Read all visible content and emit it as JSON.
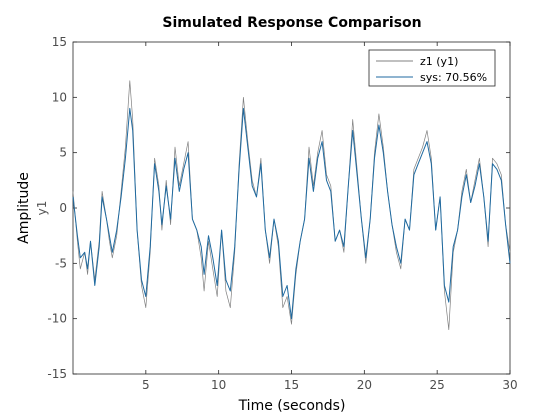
{
  "chart_data": {
    "type": "line",
    "title": "Simulated Response Comparison",
    "xlabel": "Time (seconds)",
    "ylabel": "Amplitude",
    "channel_label": "y1",
    "xlim": [
      0,
      30
    ],
    "ylim": [
      -15,
      15
    ],
    "xticks": [
      5,
      10,
      15,
      20,
      25,
      30
    ],
    "yticks": [
      -15,
      -10,
      -5,
      0,
      5,
      10,
      15
    ],
    "grid": false,
    "legend_position": "top-right",
    "series": [
      {
        "name": "z1 (y1)",
        "color": "#808080",
        "x": [
          0,
          0.3,
          0.5,
          0.8,
          1.0,
          1.2,
          1.5,
          1.8,
          2.0,
          2.3,
          2.5,
          2.7,
          3.0,
          3.3,
          3.6,
          3.9,
          4.1,
          4.4,
          4.7,
          5.0,
          5.3,
          5.6,
          5.9,
          6.1,
          6.4,
          6.7,
          7.0,
          7.3,
          7.6,
          7.9,
          8.2,
          8.5,
          8.8,
          9.0,
          9.3,
          9.6,
          9.9,
          10.2,
          10.5,
          10.8,
          11.1,
          11.4,
          11.7,
          12.0,
          12.3,
          12.6,
          12.9,
          13.2,
          13.5,
          13.8,
          14.1,
          14.4,
          14.7,
          15.0,
          15.3,
          15.6,
          15.9,
          16.2,
          16.5,
          16.8,
          17.1,
          17.4,
          17.7,
          18.0,
          18.3,
          18.6,
          18.9,
          19.2,
          19.5,
          19.8,
          20.1,
          20.4,
          20.7,
          21.0,
          21.3,
          21.6,
          21.9,
          22.2,
          22.5,
          22.8,
          23.1,
          23.4,
          23.7,
          24.0,
          24.3,
          24.6,
          24.9,
          25.2,
          25.5,
          25.8,
          26.1,
          26.4,
          26.7,
          27.0,
          27.3,
          27.6,
          27.9,
          28.2,
          28.5,
          28.8,
          29.1,
          29.4,
          29.7,
          30.0
        ],
        "y": [
          1.5,
          -3.0,
          -5.5,
          -4.0,
          -6.0,
          -3.0,
          -6.5,
          -3.0,
          1.5,
          -1.0,
          -3.0,
          -4.5,
          -2.5,
          1.5,
          5.5,
          11.5,
          8.0,
          -2.0,
          -7.0,
          -9.0,
          -4.0,
          4.5,
          2.0,
          -2.0,
          2.5,
          -1.5,
          5.5,
          2.0,
          4.0,
          6.0,
          -1.0,
          -2.0,
          -4.5,
          -7.5,
          -3.0,
          -5.5,
          -8.0,
          -2.0,
          -7.5,
          -9.0,
          -4.0,
          4.0,
          10.0,
          6.0,
          2.5,
          1.0,
          4.5,
          -2.0,
          -5.0,
          -1.0,
          -3.5,
          -9.0,
          -8.0,
          -10.5,
          -6.0,
          -3.0,
          -1.0,
          5.5,
          2.0,
          5.0,
          7.0,
          3.0,
          2.0,
          -3.0,
          -2.0,
          -4.0,
          2.0,
          8.0,
          3.5,
          -1.0,
          -5.0,
          -1.0,
          5.0,
          8.5,
          5.5,
          1.5,
          -1.5,
          -4.0,
          -5.5,
          -1.0,
          -2.0,
          3.5,
          4.5,
          5.5,
          7.0,
          4.5,
          -2.0,
          1.0,
          -7.5,
          -11.0,
          -4.0,
          -2.0,
          1.5,
          3.5,
          0.5,
          2.5,
          4.5,
          1.0,
          -3.5,
          4.5,
          4.0,
          3.0,
          -1.5,
          -4.0
        ]
      },
      {
        "name": "sys: 70.56%",
        "color": "#1f6aa0",
        "x": [
          0,
          0.3,
          0.5,
          0.8,
          1.0,
          1.2,
          1.5,
          1.8,
          2.0,
          2.3,
          2.5,
          2.7,
          3.0,
          3.3,
          3.6,
          3.9,
          4.1,
          4.4,
          4.7,
          5.0,
          5.3,
          5.6,
          5.9,
          6.1,
          6.4,
          6.7,
          7.0,
          7.3,
          7.6,
          7.9,
          8.2,
          8.5,
          8.8,
          9.0,
          9.3,
          9.6,
          9.9,
          10.2,
          10.5,
          10.8,
          11.1,
          11.4,
          11.7,
          12.0,
          12.3,
          12.6,
          12.9,
          13.2,
          13.5,
          13.8,
          14.1,
          14.4,
          14.7,
          15.0,
          15.3,
          15.6,
          15.9,
          16.2,
          16.5,
          16.8,
          17.1,
          17.4,
          17.7,
          18.0,
          18.3,
          18.6,
          18.9,
          19.2,
          19.5,
          19.8,
          20.1,
          20.4,
          20.7,
          21.0,
          21.3,
          21.6,
          21.9,
          22.2,
          22.5,
          22.8,
          23.1,
          23.4,
          23.7,
          24.0,
          24.3,
          24.6,
          24.9,
          25.2,
          25.5,
          25.8,
          26.1,
          26.4,
          26.7,
          27.0,
          27.3,
          27.6,
          27.9,
          28.2,
          28.5,
          28.8,
          29.1,
          29.4,
          29.7,
          30.0
        ],
        "y": [
          1.0,
          -2.5,
          -4.5,
          -4.0,
          -5.5,
          -3.0,
          -7.0,
          -3.5,
          1.0,
          -1.0,
          -2.5,
          -4.0,
          -2.0,
          1.0,
          4.5,
          9.0,
          7.0,
          -2.0,
          -6.5,
          -8.0,
          -3.5,
          4.0,
          1.5,
          -1.5,
          2.0,
          -1.0,
          4.5,
          1.5,
          3.5,
          5.0,
          -1.0,
          -2.0,
          -3.5,
          -6.0,
          -2.5,
          -4.5,
          -7.0,
          -2.0,
          -6.5,
          -7.5,
          -3.5,
          3.5,
          9.0,
          5.5,
          2.0,
          1.0,
          4.0,
          -2.0,
          -4.5,
          -1.0,
          -3.0,
          -8.0,
          -7.0,
          -10.0,
          -5.5,
          -3.0,
          -1.0,
          4.5,
          1.5,
          4.5,
          6.0,
          2.5,
          1.5,
          -3.0,
          -2.0,
          -3.5,
          2.0,
          7.0,
          3.0,
          -1.0,
          -4.5,
          -1.0,
          4.5,
          7.5,
          5.0,
          1.5,
          -1.5,
          -3.5,
          -5.0,
          -1.0,
          -2.0,
          3.0,
          4.0,
          5.0,
          6.0,
          4.0,
          -2.0,
          1.0,
          -7.0,
          -8.5,
          -3.5,
          -2.0,
          1.0,
          3.0,
          0.5,
          2.0,
          4.0,
          1.0,
          -3.0,
          4.0,
          3.5,
          2.5,
          -1.5,
          -5.0
        ]
      }
    ]
  }
}
